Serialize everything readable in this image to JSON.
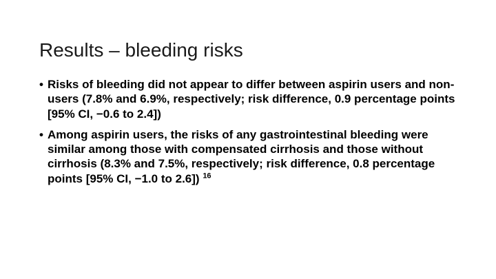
{
  "slide": {
    "title": "Results – bleeding risks",
    "bullet_char": "•",
    "bullets": [
      {
        "text": "Risks of bleeding did not appear to differ between aspirin users and non-users (7.8% and 6.9%, respectively; risk difference, 0.9 percentage points [95% CI, −0.6 to 2.4])",
        "superscript": ""
      },
      {
        "text": "Among aspirin users, the risks of any gastrointestinal bleeding were similar among those with compensated cirrhosis and those without cirrhosis (8.3% and 7.5%, respectively; risk difference, 0.8 percentage points [95% CI, −1.0 to 2.6]) ",
        "superscript": "16"
      }
    ]
  }
}
